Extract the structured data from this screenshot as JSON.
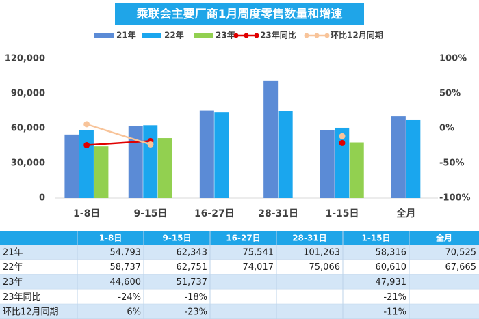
{
  "chart_data": {
    "type": "bar",
    "title": "乘联会主要厂商1月周度零售数量和增速",
    "categories": [
      "1-8日",
      "9-15日",
      "16-27日",
      "28-31日",
      "1-15日",
      "全月"
    ],
    "series": [
      {
        "name": "21年",
        "type": "bar",
        "color": "#5b8bd6",
        "values": [
          54793,
          62343,
          75541,
          101263,
          58316,
          70525
        ],
        "value_labels": [
          "54,793",
          "62,343",
          "75,541",
          "101,263",
          "58,316",
          "70,525"
        ]
      },
      {
        "name": "22年",
        "type": "bar",
        "color": "#1aa6ee",
        "values": [
          58737,
          62751,
          74017,
          75066,
          60610,
          67665
        ],
        "value_labels": [
          "58,737",
          "62,751",
          "74,017",
          "75,066",
          "60,610",
          "67,665"
        ]
      },
      {
        "name": "23年",
        "type": "bar",
        "color": "#92d050",
        "values": [
          44600,
          51737,
          null,
          null,
          47931,
          null
        ],
        "value_labels": [
          "44,600",
          "51,737",
          null,
          null,
          "47,931",
          null
        ]
      },
      {
        "name": "23年同比",
        "type": "line",
        "axis": "y2",
        "color": "#e00000",
        "values": [
          -24,
          -18,
          null,
          null,
          -21,
          null
        ],
        "value_labels": [
          "-24%",
          "-18%",
          null,
          null,
          "-21%",
          null
        ]
      },
      {
        "name": "环比12月同期",
        "type": "line",
        "axis": "y2",
        "color": "#f8c49a",
        "values": [
          6,
          -23,
          null,
          null,
          -11,
          null
        ],
        "value_labels": [
          "6%",
          "-23%",
          null,
          null,
          "-11%",
          null
        ]
      }
    ],
    "ylim": [
      0,
      120000
    ],
    "yticks": [
      0,
      {
        "value": 30000,
        "label": "30,000"
      },
      {
        "value": 60000,
        "label": "60,000"
      },
      {
        "value": 90000,
        "label": "90,000"
      },
      {
        "value": 120000,
        "label": "120,000"
      }
    ],
    "y2lim": [
      -100,
      100
    ],
    "y2ticks": [
      {
        "value": -100,
        "label": "-100%"
      },
      {
        "value": -50,
        "label": "-50%"
      },
      {
        "value": 0,
        "label": "0%"
      },
      {
        "value": 50,
        "label": "50%"
      },
      {
        "value": 100,
        "label": "100%"
      }
    ],
    "grid": false,
    "legend": "top"
  }
}
